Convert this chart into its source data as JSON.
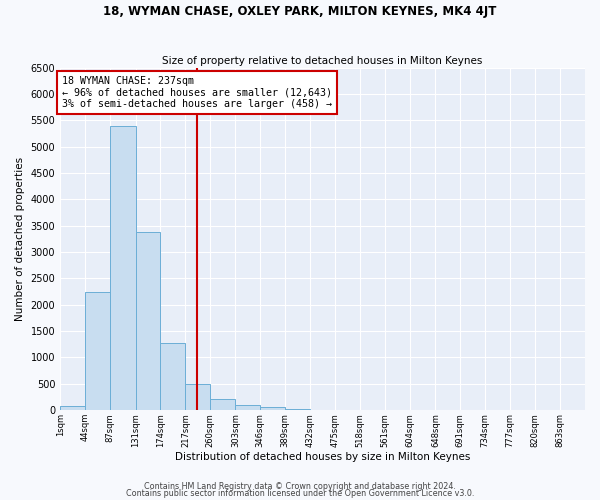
{
  "title": "18, WYMAN CHASE, OXLEY PARK, MILTON KEYNES, MK4 4JT",
  "subtitle": "Size of property relative to detached houses in Milton Keynes",
  "xlabel": "Distribution of detached houses by size in Milton Keynes",
  "ylabel": "Number of detached properties",
  "bar_color": "#c8ddf0",
  "bar_edge_color": "#6baed6",
  "background_color": "#e8eef8",
  "grid_color": "#ffffff",
  "vline_x": 237,
  "vline_color": "#cc0000",
  "annotation_text": "18 WYMAN CHASE: 237sqm\n← 96% of detached houses are smaller (12,643)\n3% of semi-detached houses are larger (458) →",
  "annotation_box_color": "#cc0000",
  "bin_edges": [
    1,
    44,
    87,
    131,
    174,
    217,
    260,
    303,
    346,
    389,
    432,
    475,
    518,
    561,
    604,
    648,
    691,
    734,
    777,
    820,
    863,
    906
  ],
  "bin_labels": [
    "1sqm",
    "44sqm",
    "87sqm",
    "131sqm",
    "174sqm",
    "217sqm",
    "260sqm",
    "303sqm",
    "346sqm",
    "389sqm",
    "432sqm",
    "475sqm",
    "518sqm",
    "561sqm",
    "604sqm",
    "648sqm",
    "691sqm",
    "734sqm",
    "777sqm",
    "820sqm",
    "863sqm"
  ],
  "bar_heights": [
    75,
    2250,
    5400,
    3380,
    1270,
    490,
    220,
    100,
    65,
    20,
    10,
    5,
    2,
    1,
    0,
    0,
    0,
    0,
    0,
    0,
    0
  ],
  "ylim": [
    0,
    6500
  ],
  "yticks": [
    0,
    500,
    1000,
    1500,
    2000,
    2500,
    3000,
    3500,
    4000,
    4500,
    5000,
    5500,
    6000,
    6500
  ],
  "footer_line1": "Contains HM Land Registry data © Crown copyright and database right 2024.",
  "footer_line2": "Contains public sector information licensed under the Open Government Licence v3.0.",
  "fig_bg": "#f7f9fd"
}
